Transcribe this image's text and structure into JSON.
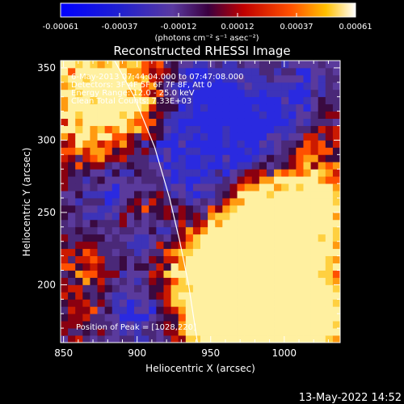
{
  "colorbar": {
    "ticks": [
      "-0.00061",
      "-0.00037",
      "-0.00012",
      "0.00012",
      "0.00037",
      "0.00061"
    ],
    "unit_label": "(photons cm⁻² s⁻¹ asec⁻²)",
    "range": [
      -0.00061,
      0.00061
    ]
  },
  "chart_data": {
    "type": "heatmap",
    "title": "Reconstructed RHESSI Image",
    "xlabel": "Heliocentric X (arcsec)",
    "ylabel": "Heliocentric Y (arcsec)",
    "xlim": [
      848,
      1038
    ],
    "ylim": [
      160,
      355
    ],
    "xticks": [
      850,
      900,
      950,
      1000
    ],
    "yticks": [
      200,
      250,
      300,
      350
    ],
    "annotation_lines": [
      "6-May-2013 07:44:04.000 to 07:47:08.000",
      "Detectors: 3F 4F 5F 6F 7F 8F, Att 0",
      "Energy Range: 12.0 - 25.0 keV",
      "Clean     Total Counts: 7.33E+03"
    ],
    "peak_label": "Position of Peak = [1028,220]",
    "peak_position": [
      1028,
      220
    ],
    "limb_curve": [
      [
        882,
        360
      ],
      [
        898,
        330
      ],
      [
        912,
        295
      ],
      [
        922,
        260
      ],
      [
        929,
        230
      ],
      [
        935,
        200
      ],
      [
        941,
        160
      ]
    ],
    "hotspots": [
      [
        872,
        340,
        38,
        1.0
      ],
      [
        890,
        318,
        22,
        0.6
      ],
      [
        985,
        240,
        30,
        0.9
      ],
      [
        1000,
        215,
        38,
        1.0
      ],
      [
        970,
        195,
        30,
        0.95
      ],
      [
        1010,
        180,
        32,
        0.85
      ],
      [
        950,
        175,
        18,
        0.5
      ],
      [
        912,
        258,
        14,
        0.5
      ],
      [
        1025,
        262,
        16,
        0.55
      ],
      [
        1018,
        300,
        12,
        0.35
      ],
      [
        1030,
        325,
        10,
        0.3
      ],
      [
        918,
        212,
        14,
        0.4
      ],
      [
        868,
        215,
        14,
        0.4
      ],
      [
        872,
        180,
        18,
        0.5
      ],
      [
        895,
        245,
        12,
        0.35
      ],
      [
        1000,
        340,
        10,
        0.3
      ]
    ],
    "coldspots": [
      [
        940,
        330,
        22,
        0.9
      ],
      [
        975,
        300,
        20,
        0.8
      ],
      [
        915,
        290,
        18,
        0.7
      ],
      [
        945,
        265,
        18,
        0.7
      ],
      [
        905,
        235,
        16,
        0.7
      ],
      [
        895,
        180,
        18,
        0.8
      ],
      [
        1030,
        205,
        14,
        0.6
      ],
      [
        880,
        265,
        14,
        0.6
      ],
      [
        1005,
        330,
        18,
        0.7
      ]
    ]
  },
  "timestamp": "13-May-2022 14:52"
}
